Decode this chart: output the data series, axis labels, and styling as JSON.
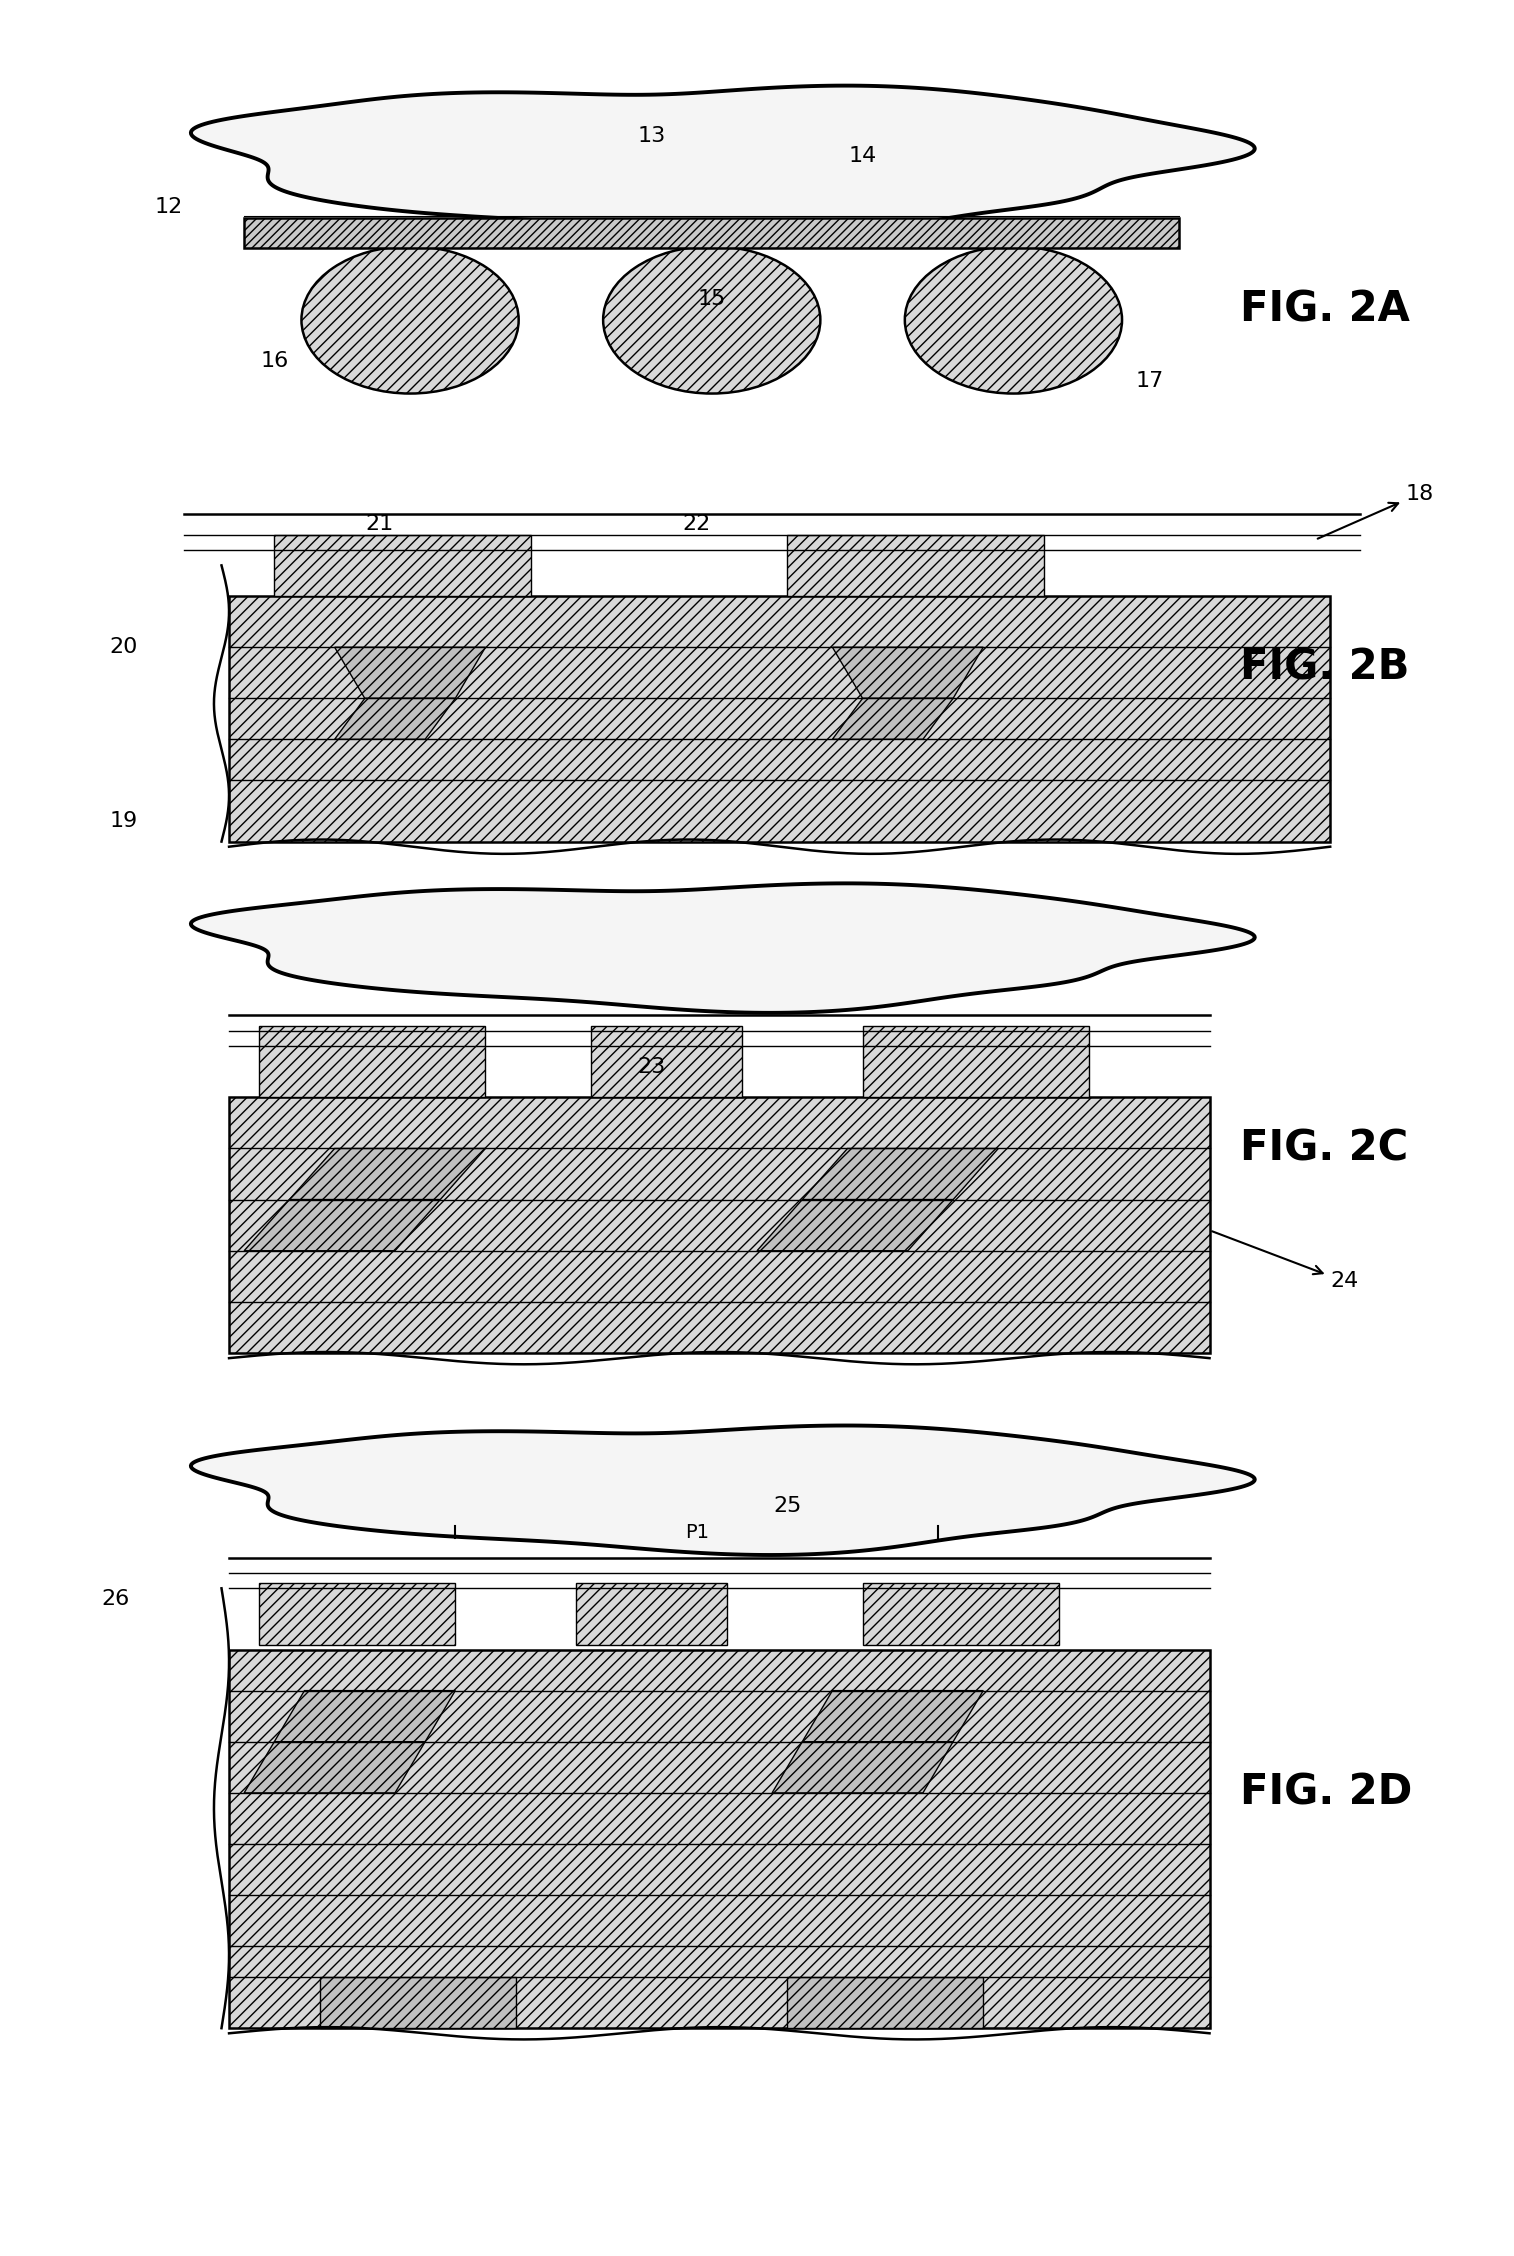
{
  "background_color": "#ffffff",
  "fig_width": 15.14,
  "fig_height": 22.56,
  "fig_labels": [
    "FIG. 2A",
    "FIG. 2B",
    "FIG. 2C",
    "FIG. 2D"
  ],
  "fig_label_fontsize": 30,
  "ref_num_fontsize": 16,
  "lw_thin": 1.0,
  "lw_med": 1.8,
  "lw_thick": 2.8,
  "hatch_dense": "////",
  "hatch_light": "///",
  "hatch_dot": "....",
  "fc_hatch": "#d8d8d8",
  "fc_blob": "#f5f5f5",
  "fc_dot": "#e8e8e8"
}
